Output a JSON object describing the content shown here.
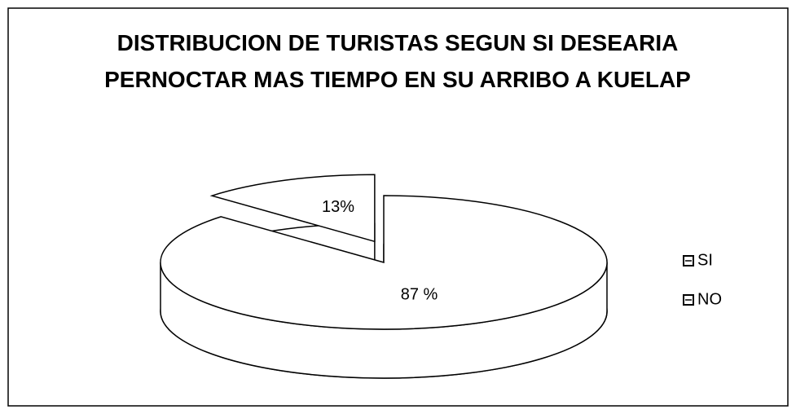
{
  "chart_data": {
    "type": "pie",
    "title": "DISTRIBUCION DE TURISTAS SEGUN SI DESEARIA PERNOCTAR MAS TIEMPO EN SU ARRIBO A KUELAP",
    "categories": [
      "SI",
      "NO"
    ],
    "values": [
      87,
      13
    ],
    "value_labels": [
      "87 %",
      "13%"
    ],
    "color": "#ffffff",
    "legend": "right"
  }
}
